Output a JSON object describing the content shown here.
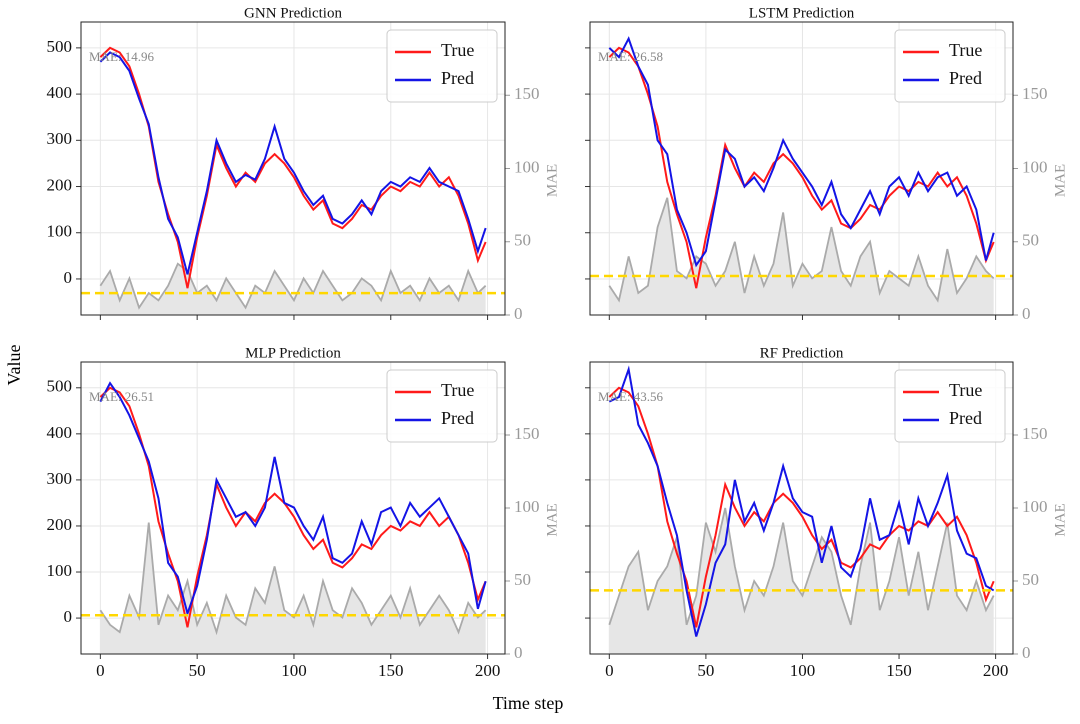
{
  "xlabel": "Time step",
  "ylabel": "Value",
  "chart_data": [
    {
      "type": "line",
      "title": "GNN Prediction",
      "annotation": "MAE: 14.96",
      "mae_mean": 14.96,
      "mae_mean_color": "#ffd700",
      "x": [
        0,
        5,
        10,
        15,
        20,
        25,
        30,
        35,
        40,
        45,
        50,
        55,
        60,
        65,
        70,
        75,
        80,
        85,
        90,
        95,
        100,
        105,
        110,
        115,
        120,
        125,
        130,
        135,
        140,
        145,
        150,
        155,
        160,
        165,
        170,
        175,
        180,
        185,
        190,
        195,
        199
      ],
      "series": [
        {
          "name": "True",
          "color": "#ff1a1a",
          "values": [
            480,
            500,
            490,
            460,
            400,
            330,
            210,
            140,
            80,
            -20,
            90,
            180,
            290,
            240,
            200,
            230,
            210,
            250,
            270,
            250,
            220,
            180,
            150,
            170,
            120,
            110,
            130,
            160,
            150,
            180,
            200,
            190,
            210,
            200,
            230,
            200,
            220,
            180,
            120,
            40,
            80
          ]
        },
        {
          "name": "Pred",
          "color": "#1414e6",
          "values": [
            470,
            490,
            480,
            450,
            390,
            335,
            220,
            130,
            90,
            10,
            100,
            190,
            300,
            250,
            210,
            225,
            215,
            260,
            330,
            260,
            230,
            190,
            160,
            180,
            130,
            120,
            140,
            170,
            140,
            190,
            210,
            200,
            220,
            210,
            240,
            210,
            200,
            190,
            130,
            60,
            110
          ]
        }
      ],
      "mae": {
        "color": "#aaaaaa",
        "fill": "#e6e6e6",
        "axis": "y2",
        "values": [
          20,
          30,
          10,
          25,
          5,
          15,
          10,
          20,
          35,
          30,
          15,
          20,
          10,
          25,
          15,
          5,
          20,
          15,
          30,
          20,
          10,
          25,
          15,
          30,
          20,
          10,
          15,
          25,
          20,
          10,
          30,
          15,
          20,
          10,
          25,
          15,
          20,
          10,
          30,
          15,
          20
        ]
      },
      "y2label": "MAE",
      "xlim": [
        -10,
        209
      ],
      "xticks": [
        0,
        50,
        100,
        150,
        200
      ],
      "ylim": [
        -78,
        556
      ],
      "yticks": [
        0,
        100,
        200,
        300,
        400,
        500
      ],
      "y2lim": [
        0,
        200
      ],
      "y2ticks": [
        0,
        50,
        100,
        150
      ],
      "grid": true,
      "legend": "upper right"
    },
    {
      "type": "line",
      "title": "LSTM Prediction",
      "annotation": "MAE: 26.58",
      "mae_mean": 26.58,
      "mae_mean_color": "#ffd700",
      "x": [
        0,
        5,
        10,
        15,
        20,
        25,
        30,
        35,
        40,
        45,
        50,
        55,
        60,
        65,
        70,
        75,
        80,
        85,
        90,
        95,
        100,
        105,
        110,
        115,
        120,
        125,
        130,
        135,
        140,
        145,
        150,
        155,
        160,
        165,
        170,
        175,
        180,
        185,
        190,
        195,
        199
      ],
      "series": [
        {
          "name": "True",
          "color": "#ff1a1a",
          "values": [
            480,
            500,
            490,
            460,
            400,
            330,
            210,
            140,
            80,
            -20,
            90,
            180,
            290,
            240,
            200,
            230,
            210,
            250,
            270,
            250,
            220,
            180,
            150,
            170,
            120,
            110,
            130,
            160,
            150,
            180,
            200,
            190,
            210,
            200,
            230,
            200,
            220,
            180,
            120,
            40,
            80
          ]
        },
        {
          "name": "Pred",
          "color": "#1414e6",
          "values": [
            500,
            480,
            520,
            460,
            420,
            300,
            270,
            150,
            100,
            30,
            60,
            170,
            280,
            260,
            200,
            220,
            190,
            240,
            300,
            260,
            230,
            200,
            160,
            210,
            140,
            110,
            150,
            190,
            140,
            200,
            220,
            180,
            230,
            190,
            220,
            230,
            180,
            200,
            150,
            40,
            100
          ]
        }
      ],
      "mae": {
        "color": "#aaaaaa",
        "fill": "#e6e6e6",
        "axis": "y2",
        "values": [
          20,
          10,
          40,
          15,
          20,
          60,
          80,
          30,
          25,
          40,
          35,
          20,
          30,
          50,
          15,
          40,
          20,
          35,
          70,
          20,
          35,
          25,
          30,
          60,
          30,
          20,
          40,
          50,
          15,
          30,
          25,
          20,
          40,
          20,
          10,
          45,
          15,
          25,
          40,
          30,
          25
        ]
      },
      "y2label": "MAE",
      "xlim": [
        -10,
        209
      ],
      "xticks": [
        0,
        50,
        100,
        150,
        200
      ],
      "ylim": [
        -78,
        556
      ],
      "yticks": [
        0,
        100,
        200,
        300,
        400,
        500
      ],
      "y2lim": [
        0,
        200
      ],
      "y2ticks": [
        0,
        50,
        100,
        150
      ],
      "grid": true,
      "legend": "upper right"
    },
    {
      "type": "line",
      "title": "MLP Prediction",
      "annotation": "MAE: 26.51",
      "mae_mean": 26.51,
      "mae_mean_color": "#ffd700",
      "x": [
        0,
        5,
        10,
        15,
        20,
        25,
        30,
        35,
        40,
        45,
        50,
        55,
        60,
        65,
        70,
        75,
        80,
        85,
        90,
        95,
        100,
        105,
        110,
        115,
        120,
        125,
        130,
        135,
        140,
        145,
        150,
        155,
        160,
        165,
        170,
        175,
        180,
        185,
        190,
        195,
        199
      ],
      "series": [
        {
          "name": "True",
          "color": "#ff1a1a",
          "values": [
            480,
            500,
            490,
            460,
            400,
            330,
            210,
            140,
            80,
            -20,
            90,
            180,
            290,
            240,
            200,
            230,
            210,
            250,
            270,
            250,
            220,
            180,
            150,
            170,
            120,
            110,
            130,
            160,
            150,
            180,
            200,
            190,
            210,
            200,
            230,
            200,
            220,
            180,
            120,
            40,
            80
          ]
        },
        {
          "name": "Pred",
          "color": "#1414e6",
          "values": [
            470,
            510,
            480,
            440,
            390,
            340,
            260,
            120,
            90,
            10,
            70,
            170,
            300,
            260,
            220,
            230,
            200,
            240,
            350,
            250,
            240,
            200,
            170,
            220,
            130,
            120,
            140,
            210,
            160,
            230,
            240,
            200,
            250,
            220,
            240,
            260,
            220,
            180,
            140,
            20,
            80
          ]
        }
      ],
      "mae": {
        "color": "#aaaaaa",
        "fill": "#e6e6e6",
        "axis": "y2",
        "values": [
          30,
          20,
          15,
          40,
          25,
          90,
          20,
          40,
          30,
          50,
          20,
          35,
          15,
          40,
          25,
          20,
          45,
          35,
          60,
          30,
          25,
          40,
          20,
          50,
          30,
          25,
          45,
          35,
          20,
          30,
          40,
          25,
          45,
          20,
          30,
          40,
          30,
          15,
          35,
          25,
          30
        ]
      },
      "y2label": "MAE",
      "xlim": [
        -10,
        209
      ],
      "xticks": [
        0,
        50,
        100,
        150,
        200
      ],
      "ylim": [
        -78,
        556
      ],
      "yticks": [
        0,
        100,
        200,
        300,
        400,
        500
      ],
      "y2lim": [
        0,
        200
      ],
      "y2ticks": [
        0,
        50,
        100,
        150
      ],
      "grid": true,
      "legend": "upper right"
    },
    {
      "type": "line",
      "title": "RF Prediction",
      "annotation": "MAE: 43.56",
      "mae_mean": 43.56,
      "mae_mean_color": "#ffd700",
      "x": [
        0,
        5,
        10,
        15,
        20,
        25,
        30,
        35,
        40,
        45,
        50,
        55,
        60,
        65,
        70,
        75,
        80,
        85,
        90,
        95,
        100,
        105,
        110,
        115,
        120,
        125,
        130,
        135,
        140,
        145,
        150,
        155,
        160,
        165,
        170,
        175,
        180,
        185,
        190,
        195,
        199
      ],
      "series": [
        {
          "name": "True",
          "color": "#ff1a1a",
          "values": [
            480,
            500,
            490,
            460,
            400,
            330,
            210,
            140,
            80,
            -20,
            90,
            180,
            290,
            240,
            200,
            230,
            210,
            250,
            270,
            250,
            220,
            180,
            150,
            170,
            120,
            110,
            130,
            160,
            150,
            180,
            200,
            190,
            210,
            200,
            230,
            200,
            220,
            180,
            120,
            40,
            80
          ]
        },
        {
          "name": "Pred",
          "color": "#1414e6",
          "values": [
            470,
            480,
            540,
            420,
            380,
            330,
            250,
            180,
            60,
            -40,
            30,
            120,
            160,
            300,
            210,
            250,
            190,
            250,
            330,
            260,
            230,
            220,
            120,
            200,
            110,
            90,
            150,
            260,
            170,
            180,
            250,
            160,
            260,
            200,
            250,
            310,
            190,
            140,
            130,
            70,
            60
          ]
        }
      ],
      "mae": {
        "color": "#aaaaaa",
        "fill": "#e6e6e6",
        "axis": "y2",
        "values": [
          20,
          40,
          60,
          70,
          30,
          50,
          60,
          80,
          20,
          40,
          90,
          70,
          100,
          60,
          30,
          50,
          40,
          60,
          90,
          50,
          40,
          60,
          80,
          70,
          40,
          20,
          60,
          90,
          30,
          50,
          80,
          40,
          70,
          30,
          60,
          90,
          40,
          30,
          50,
          30,
          40
        ]
      },
      "y2label": "MAE",
      "xlim": [
        -10,
        209
      ],
      "xticks": [
        0,
        50,
        100,
        150,
        200
      ],
      "ylim": [
        -78,
        556
      ],
      "yticks": [
        0,
        100,
        200,
        300,
        400,
        500
      ],
      "y2lim": [
        0,
        200
      ],
      "y2ticks": [
        0,
        50,
        100,
        150
      ],
      "grid": true,
      "legend": "upper right"
    }
  ]
}
